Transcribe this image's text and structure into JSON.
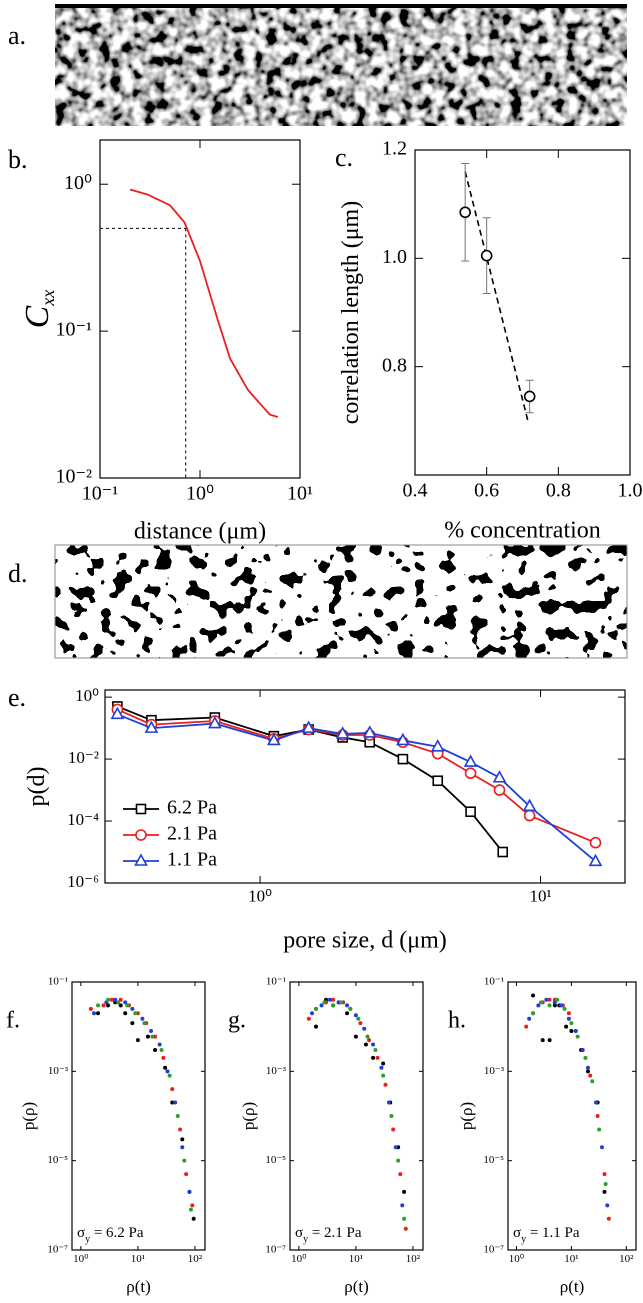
{
  "images": [
    {
      "label": "a."
    },
    {
      "label": "d."
    }
  ],
  "chart_data": [
    {
      "type": "line",
      "panel_label": "b.",
      "x_label": "distance (μm)",
      "y_label": "C",
      "y_label_sub": "xx",
      "xscale": "log",
      "yscale": "log",
      "xlim": [
        0.1,
        10
      ],
      "ylim": [
        0.01,
        2
      ],
      "xticks": [
        {
          "value": 0.1,
          "label": "10⁻¹"
        },
        {
          "value": 1,
          "label": "10⁰"
        },
        {
          "value": 10,
          "label": "10¹"
        }
      ],
      "yticks": [
        {
          "value": 0.01,
          "label": "10⁻²"
        },
        {
          "value": 0.1,
          "label": "10⁻¹"
        },
        {
          "value": 1,
          "label": "10⁰"
        }
      ],
      "series": [
        {
          "color": "#e8201e",
          "x": [
            0.2,
            0.3,
            0.5,
            0.7,
            1.0,
            1.5,
            2.0,
            3.0,
            4.0,
            5.0,
            6.0
          ],
          "values": [
            0.92,
            0.85,
            0.72,
            0.55,
            0.3,
            0.12,
            0.065,
            0.04,
            0.032,
            0.027,
            0.026
          ]
        }
      ],
      "guides": {
        "x": 0.72,
        "y": 0.5
      }
    },
    {
      "type": "scatter",
      "panel_label": "c.",
      "x_label": "% concentration",
      "y_label": "correlation length (μm)",
      "xlim": [
        0.4,
        1.0
      ],
      "ylim": [
        0.6,
        1.2
      ],
      "xticks": [
        0.4,
        0.6,
        0.8,
        {
          "value": 1,
          "label": "1.0"
        }
      ],
      "yticks": [
        0.8,
        {
          "value": 1,
          "label": "1.0"
        },
        1.2
      ],
      "series": [
        {
          "color": "#000000",
          "marker": "circle",
          "x": [
            0.54,
            0.6,
            0.72
          ],
          "values": [
            1.085,
            1.005,
            0.745
          ],
          "errors": [
            0.09,
            0.07,
            0.03
          ]
        }
      ],
      "fit_line": {
        "x": [
          0.54,
          0.715
        ],
        "values": [
          1.16,
          0.7
        ]
      }
    },
    {
      "type": "line",
      "panel_label": "e.",
      "x_label": "pore size, d (μm)",
      "y_label": "p(d)",
      "xscale": "log",
      "yscale": "log",
      "xlim": [
        0.28,
        20
      ],
      "ylim": [
        1e-06,
        1.7
      ],
      "xticks": [
        {
          "value": 1,
          "label": "10⁰"
        },
        {
          "value": 10,
          "label": "10¹"
        }
      ],
      "yticks": [
        {
          "value": 1e-06,
          "label": "10⁻⁶"
        },
        {
          "value": 0.0001,
          "label": "10⁻⁴"
        },
        {
          "value": 0.01,
          "label": "10⁻²"
        },
        {
          "value": 1,
          "label": "10⁰"
        }
      ],
      "legend": "lower left",
      "series": [
        {
          "name": "6.2 Pa",
          "color": "#000000",
          "marker": "square",
          "x": [
            0.31,
            0.41,
            0.69,
            1.12,
            1.49,
            1.97,
            2.46,
            3.23,
            4.3,
            5.63,
            7.33
          ],
          "values": [
            0.5,
            0.18,
            0.22,
            0.055,
            0.09,
            0.05,
            0.035,
            0.01,
            0.002,
            0.0002,
            1e-05
          ]
        },
        {
          "name": "2.1 Pa",
          "color": "#e8201e",
          "marker": "circle",
          "x": [
            0.31,
            0.41,
            0.69,
            1.12,
            1.49,
            1.97,
            2.46,
            3.23,
            4.3,
            5.63,
            7.14,
            9.14,
            15.7
          ],
          "values": [
            0.4,
            0.13,
            0.17,
            0.045,
            0.09,
            0.06,
            0.06,
            0.035,
            0.015,
            0.0035,
            0.001,
            0.00015,
            2e-05
          ]
        },
        {
          "name": "1.1 Pa",
          "color": "#1f3fd6",
          "marker": "triangle",
          "x": [
            0.31,
            0.41,
            0.69,
            1.12,
            1.49,
            1.97,
            2.46,
            3.23,
            4.3,
            5.63,
            7.14,
            9.14,
            15.7
          ],
          "values": [
            0.28,
            0.1,
            0.14,
            0.04,
            0.1,
            0.065,
            0.07,
            0.04,
            0.025,
            0.008,
            0.0025,
            0.0003,
            5e-06
          ]
        }
      ]
    },
    {
      "type": "scatter",
      "panel_label": "f.",
      "x_label": "ρ(t)",
      "y_label": "p(ρ)",
      "xscale": "log",
      "yscale": "log",
      "xlim": [
        0.7,
        150
      ],
      "ylim": [
        1e-07,
        0.1
      ],
      "xticks": [
        {
          "value": 1,
          "label": "10⁰"
        },
        {
          "value": 10,
          "label": "10¹"
        },
        {
          "value": 100,
          "label": "10²"
        }
      ],
      "yticks": [
        {
          "value": 1e-07,
          "label": "10⁻⁷"
        },
        {
          "value": 1e-05,
          "label": "10⁻⁵"
        },
        {
          "value": 0.001,
          "label": "10⁻³"
        },
        {
          "value": 0.1,
          "label": "10⁻¹"
        }
      ],
      "annotation": {
        "symbol": "σ",
        "subscript": "y",
        "text": " = 6.2 Pa"
      },
      "series": [
        {
          "color": "#000000",
          "x": [
            2,
            3,
            4,
            5,
            6,
            8,
            10,
            15,
            20,
            30,
            40,
            60,
            80,
            95
          ],
          "values": [
            0.02,
            0.03,
            0.035,
            0.03,
            0.02,
            0.012,
            0.005,
            0.006,
            0.003,
            0.0012,
            0.0002,
            3e-05,
            2e-06,
            5e-07
          ]
        },
        {
          "color": "#e8201e",
          "x": [
            1.5,
            2.5,
            3.5,
            5,
            7,
            10,
            14,
            20,
            28,
            40,
            55,
            70,
            90
          ],
          "values": [
            0.025,
            0.03,
            0.04,
            0.04,
            0.03,
            0.02,
            0.012,
            0.006,
            0.002,
            0.0004,
            5e-05,
            5e-06,
            1e-06
          ]
        },
        {
          "color": "#1f3fd6",
          "x": [
            1.7,
            2.8,
            4,
            6,
            8,
            12,
            17,
            24,
            33,
            45,
            60,
            80
          ],
          "values": [
            0.02,
            0.035,
            0.04,
            0.035,
            0.025,
            0.015,
            0.008,
            0.004,
            0.001,
            0.0002,
            2e-05,
            2e-06
          ]
        },
        {
          "color": "#2ca02c",
          "x": [
            2,
            3,
            4.5,
            6.5,
            9,
            13,
            18,
            26,
            36,
            50,
            65,
            85
          ],
          "values": [
            0.03,
            0.04,
            0.035,
            0.03,
            0.02,
            0.012,
            0.006,
            0.003,
            0.0008,
            0.0001,
            1e-05,
            8e-07
          ]
        }
      ]
    },
    {
      "type": "scatter",
      "panel_label": "g.",
      "x_label": "ρ(t)",
      "y_label": "p(ρ)",
      "xscale": "log",
      "yscale": "log",
      "xlim": [
        0.7,
        150
      ],
      "ylim": [
        1e-07,
        0.1
      ],
      "xticks": [
        {
          "value": 1,
          "label": "10⁰"
        },
        {
          "value": 10,
          "label": "10¹"
        },
        {
          "value": 100,
          "label": "10²"
        }
      ],
      "yticks": [
        {
          "value": 1e-07,
          "label": "10⁻⁷"
        },
        {
          "value": 1e-05,
          "label": "10⁻⁵"
        },
        {
          "value": 0.001,
          "label": "10⁻³"
        },
        {
          "value": 0.1,
          "label": "10⁻¹"
        }
      ],
      "annotation": {
        "symbol": "σ",
        "subscript": "y",
        "text": " = 2.1 Pa"
      },
      "series": [
        {
          "color": "#000000",
          "x": [
            2,
            3,
            4,
            5,
            7,
            10,
            15,
            20,
            30,
            40,
            55,
            70
          ],
          "values": [
            0.01,
            0.04,
            0.03,
            0.035,
            0.02,
            0.006,
            0.004,
            0.002,
            0.0015,
            0.0002,
            2e-05,
            2e-06
          ]
        },
        {
          "color": "#e8201e",
          "x": [
            1.5,
            2,
            3,
            4,
            6,
            8,
            12,
            17,
            24,
            33,
            45,
            60,
            75
          ],
          "values": [
            0.015,
            0.025,
            0.035,
            0.04,
            0.035,
            0.025,
            0.012,
            0.005,
            0.002,
            0.0005,
            5e-05,
            5e-06,
            3e-07
          ]
        },
        {
          "color": "#1f3fd6",
          "x": [
            1.7,
            2.5,
            3.5,
            5,
            7,
            10,
            14,
            20,
            28,
            38,
            50,
            65
          ],
          "values": [
            0.02,
            0.03,
            0.04,
            0.035,
            0.03,
            0.018,
            0.009,
            0.004,
            0.0012,
            0.0002,
            2e-05,
            1e-06
          ]
        },
        {
          "color": "#2ca02c",
          "x": [
            2,
            2.8,
            4,
            5.5,
            8,
            11,
            16,
            22,
            30,
            42,
            55,
            70
          ],
          "values": [
            0.025,
            0.035,
            0.03,
            0.035,
            0.025,
            0.015,
            0.006,
            0.003,
            0.0008,
            0.0001,
            1e-05,
            5e-07
          ]
        }
      ]
    },
    {
      "type": "scatter",
      "panel_label": "h.",
      "x_label": "ρ(t)",
      "y_label": "p(ρ)",
      "xscale": "log",
      "yscale": "log",
      "xlim": [
        0.7,
        150
      ],
      "ylim": [
        1e-07,
        0.1
      ],
      "xticks": [
        {
          "value": 1,
          "label": "10⁰"
        },
        {
          "value": 10,
          "label": "10¹"
        },
        {
          "value": 100,
          "label": "10²"
        }
      ],
      "yticks": [
        {
          "value": 1e-07,
          "label": "10⁻⁷"
        },
        {
          "value": 1e-05,
          "label": "10⁻⁵"
        },
        {
          "value": 0.001,
          "label": "10⁻³"
        },
        {
          "value": 0.1,
          "label": "10⁻¹"
        }
      ],
      "annotation": {
        "symbol": "σ",
        "subscript": "y",
        "text": " = 1.1 Pa"
      },
      "series": [
        {
          "color": "#000000",
          "x": [
            2,
            3,
            4,
            5,
            6,
            8,
            10,
            15,
            20,
            30,
            40
          ],
          "values": [
            0.05,
            0.005,
            0.005,
            0.03,
            0.03,
            0.01,
            0.008,
            0.003,
            0.001,
            0.0002,
            2e-06
          ]
        },
        {
          "color": "#e8201e",
          "x": [
            1.5,
            2,
            3,
            4,
            5,
            7,
            9,
            12,
            16,
            22,
            30,
            40,
            48
          ],
          "values": [
            0.01,
            0.02,
            0.035,
            0.04,
            0.04,
            0.03,
            0.02,
            0.008,
            0.003,
            0.0008,
            0.0001,
            5e-06,
            5e-07
          ]
        },
        {
          "color": "#1f3fd6",
          "x": [
            1.7,
            2.5,
            3.5,
            5,
            6.5,
            9,
            12,
            16,
            20,
            28,
            36,
            45
          ],
          "values": [
            0.015,
            0.03,
            0.04,
            0.035,
            0.03,
            0.015,
            0.008,
            0.003,
            0.0012,
            0.0002,
            2e-05,
            1e-06
          ]
        },
        {
          "color": "#2ca02c",
          "x": [
            2,
            2.8,
            4,
            5.5,
            7.5,
            10,
            13,
            18,
            24,
            32,
            42
          ],
          "values": [
            0.02,
            0.035,
            0.03,
            0.04,
            0.025,
            0.012,
            0.006,
            0.002,
            0.0006,
            5e-05,
            3e-06
          ]
        }
      ]
    }
  ]
}
